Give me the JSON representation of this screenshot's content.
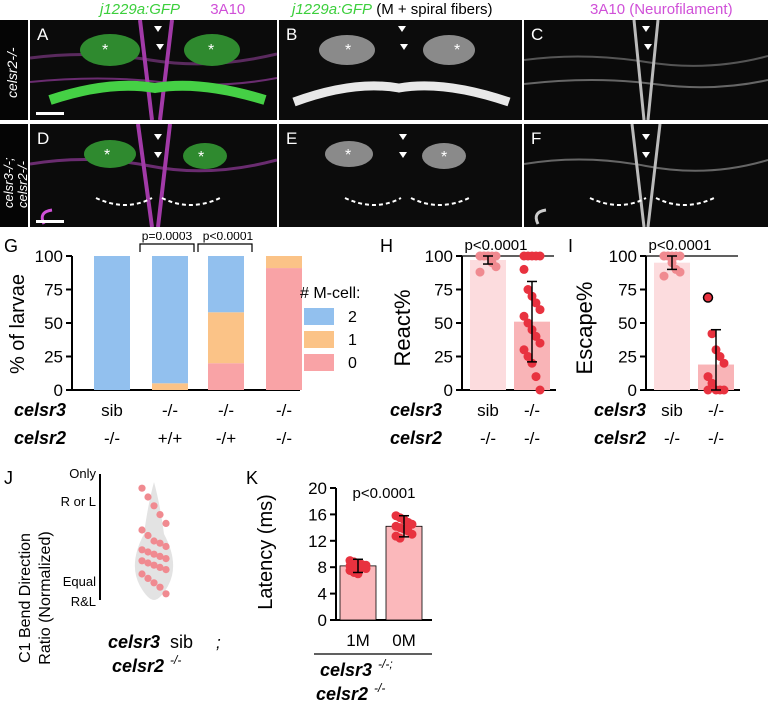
{
  "headers": {
    "col1_gene": "j1229a:GFP",
    "col1_ab": "3A10",
    "col2_gene": "j1229a:GFP",
    "col2_rest": "(M + spiral fibers)",
    "col3": "3A10 (Neurofilament)"
  },
  "row_labels": {
    "top": "celsr2-/-",
    "bottom_1": "celsr3-/-;",
    "bottom_2": "celsr2-/-"
  },
  "panel_letters": [
    "A",
    "B",
    "C",
    "D",
    "E",
    "F",
    "G",
    "H",
    "I",
    "J",
    "K"
  ],
  "colors": {
    "blue": "#92c0ee",
    "orange": "#fbc387",
    "pink": "#f9a3a6",
    "red": "#e8323f",
    "green": "#3ccf3c",
    "magenta": "#d050d8"
  },
  "panel_G": {
    "ylabel": "% of larvae",
    "yticks": [
      "0",
      "25",
      "50",
      "75",
      "100"
    ],
    "legend_title": "# M-cell:",
    "legend": [
      "2",
      "1",
      "0"
    ],
    "p1": "p=0.0003",
    "p2": "p<0.0001",
    "geno_row1_label": "celsr3",
    "geno_row2_label": "celsr2",
    "geno_row1": [
      "sib",
      "-/-",
      "-/-",
      "-/-"
    ],
    "geno_row2": [
      "-/-",
      "+/+",
      "-/+",
      "-/-"
    ]
  },
  "panel_H": {
    "ylabel": "React%",
    "pvalue": "p<0.0001",
    "yticks": [
      "0",
      "25",
      "50",
      "75",
      "100"
    ],
    "x": [
      "sib",
      "-/-"
    ],
    "row1": "celsr3",
    "row2": "celsr2",
    "row2_vals": [
      "-/-",
      "-/-"
    ]
  },
  "panel_I": {
    "ylabel": "Escape%",
    "pvalue": "p<0.0001",
    "yticks": [
      "0",
      "25",
      "50",
      "75",
      "100"
    ],
    "x": [
      "sib",
      "-/-"
    ],
    "row2_vals": [
      "-/-",
      "-/-"
    ]
  },
  "panel_J": {
    "ylabel_1": "C1 Bend Direction",
    "ylabel_2": "Ratio (Normalized)",
    "top_1": "Only",
    "top_2": "R or L",
    "bottom_1": "Equal",
    "bottom_2": "R&L",
    "x_bold": "celsr3",
    "x_rest": "sib",
    "x_line2": "celsr2",
    "x_line2_sup": "-/-",
    "semicolon": ";"
  },
  "panel_K": {
    "ylabel": "Latency (ms)",
    "pvalue": "p<0.0001",
    "yticks": [
      "0",
      "4",
      "8",
      "12",
      "16",
      "20"
    ],
    "x": [
      "1M",
      "0M"
    ],
    "g1": "celsr3",
    "g1_sup": "-/-;",
    "g2": "celsr2",
    "g2_sup": "-/-"
  },
  "chart_data": [
    {
      "panel": "G",
      "type": "bar",
      "ylabel": "% of larvae",
      "ylim": [
        0,
        100
      ],
      "categories": [
        "sib -/-",
        "-/- +/+",
        "-/- -/+",
        "-/- -/-"
      ],
      "series": [
        {
          "name": "2",
          "values": [
            100,
            95,
            42,
            0
          ]
        },
        {
          "name": "1",
          "values": [
            0,
            5,
            38,
            9
          ]
        },
        {
          "name": "0",
          "values": [
            0,
            0,
            20,
            91
          ]
        }
      ]
    },
    {
      "panel": "H",
      "type": "bar",
      "ylabel": "React%",
      "ylim": [
        0,
        100
      ],
      "categories": [
        "sib",
        "-/-"
      ],
      "values": [
        97,
        51
      ],
      "error": [
        3,
        30
      ],
      "points": [
        [
          100,
          100,
          100,
          100,
          100,
          100,
          100,
          100,
          95,
          92,
          88
        ],
        [
          100,
          100,
          100,
          100,
          100,
          90,
          75,
          70,
          65,
          60,
          55,
          50,
          45,
          40,
          35,
          30,
          25,
          20,
          10,
          0
        ]
      ]
    },
    {
      "panel": "I",
      "type": "bar",
      "ylabel": "Escape%",
      "ylim": [
        0,
        100
      ],
      "categories": [
        "sib",
        "-/-"
      ],
      "values": [
        95,
        19
      ],
      "error": [
        5,
        26
      ],
      "points": [
        [
          100,
          100,
          100,
          100,
          100,
          100,
          100,
          95,
          90,
          88,
          85
        ],
        [
          69,
          42,
          30,
          25,
          20,
          10,
          5,
          0,
          0,
          0,
          0
        ]
      ]
    },
    {
      "panel": "K",
      "type": "bar",
      "ylabel": "Latency (ms)",
      "ylim": [
        0,
        20
      ],
      "categories": [
        "1M",
        "0M"
      ],
      "values": [
        8.2,
        14.2
      ],
      "error": [
        1,
        1.6
      ],
      "points": [
        [
          9,
          8.8,
          8.6,
          8.4,
          8.3,
          8.2,
          8.1,
          8,
          7.9,
          7.8,
          7.5,
          7.2,
          7
        ],
        [
          15.8,
          15.5,
          15.2,
          14.8,
          14.5,
          14.2,
          14,
          13.8,
          13.5,
          13,
          12.7,
          12.4
        ]
      ]
    }
  ]
}
